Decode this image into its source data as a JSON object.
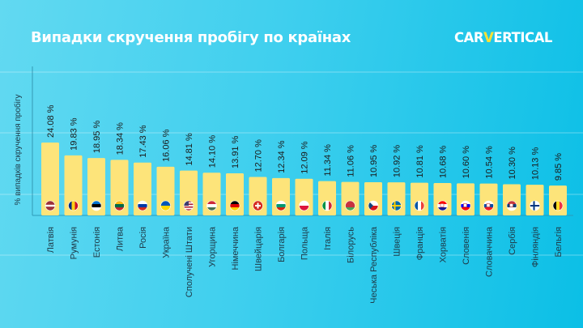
{
  "header": {
    "title": "Випадки скручення пробігу по країнах",
    "logo_left": "CAR",
    "logo_v": "V",
    "logo_right": "ERTICAL"
  },
  "chart_data": {
    "type": "bar",
    "title": "Випадки скручення пробігу по країнах",
    "xlabel": "",
    "ylabel": "% випадків скручення пробігу",
    "ylim": [
      0,
      26
    ],
    "grid": true,
    "value_suffix": " %",
    "bar_color": "#fde47a",
    "categories": [
      "Латвія",
      "Румунія",
      "Естонія",
      "Литва",
      "Росія",
      "Україна",
      "Сполучені Штати",
      "Угорщина",
      "Німеччина",
      "Швейцарія",
      "Болгарія",
      "Польща",
      "Італія",
      "Білорусь",
      "Чеська Республіка",
      "Швеція",
      "Франція",
      "Хорватія",
      "Словенія",
      "Словаччина",
      "Сербія",
      "Фінляндія",
      "Бельгія"
    ],
    "values": [
      24.08,
      19.83,
      18.95,
      18.34,
      17.43,
      16.06,
      14.81,
      14.1,
      13.91,
      12.7,
      12.34,
      12.09,
      11.34,
      11.06,
      10.95,
      10.92,
      10.81,
      10.68,
      10.6,
      10.54,
      10.3,
      10.13,
      9.85
    ],
    "value_labels": [
      "24.08 %",
      "19.83 %",
      "18.95 %",
      "18.34 %",
      "17.43 %",
      "16.06 %",
      "14.81 %",
      "14.10 %",
      "13.91 %",
      "12.70 %",
      "12.34 %",
      "12.09 %",
      "11.34 %",
      "11.06 %",
      "10.95 %",
      "10.92 %",
      "10.81 %",
      "10.68 %",
      "10.60 %",
      "10.54 %",
      "10.30 %",
      "10.13 %",
      "9.85 %"
    ],
    "flags": [
      "lv-flag-icon",
      "ro-flag-icon",
      "ee-flag-icon",
      "lt-flag-icon",
      "ru-flag-icon",
      "ua-flag-icon",
      "us-flag-icon",
      "hu-flag-icon",
      "de-flag-icon",
      "ch-flag-icon",
      "bg-flag-icon",
      "pl-flag-icon",
      "it-flag-icon",
      "by-flag-icon",
      "cz-flag-icon",
      "se-flag-icon",
      "fr-flag-icon",
      "hr-flag-icon",
      "si-flag-icon",
      "sk-flag-icon",
      "rs-flag-icon",
      "fi-flag-icon",
      "be-flag-icon"
    ]
  }
}
